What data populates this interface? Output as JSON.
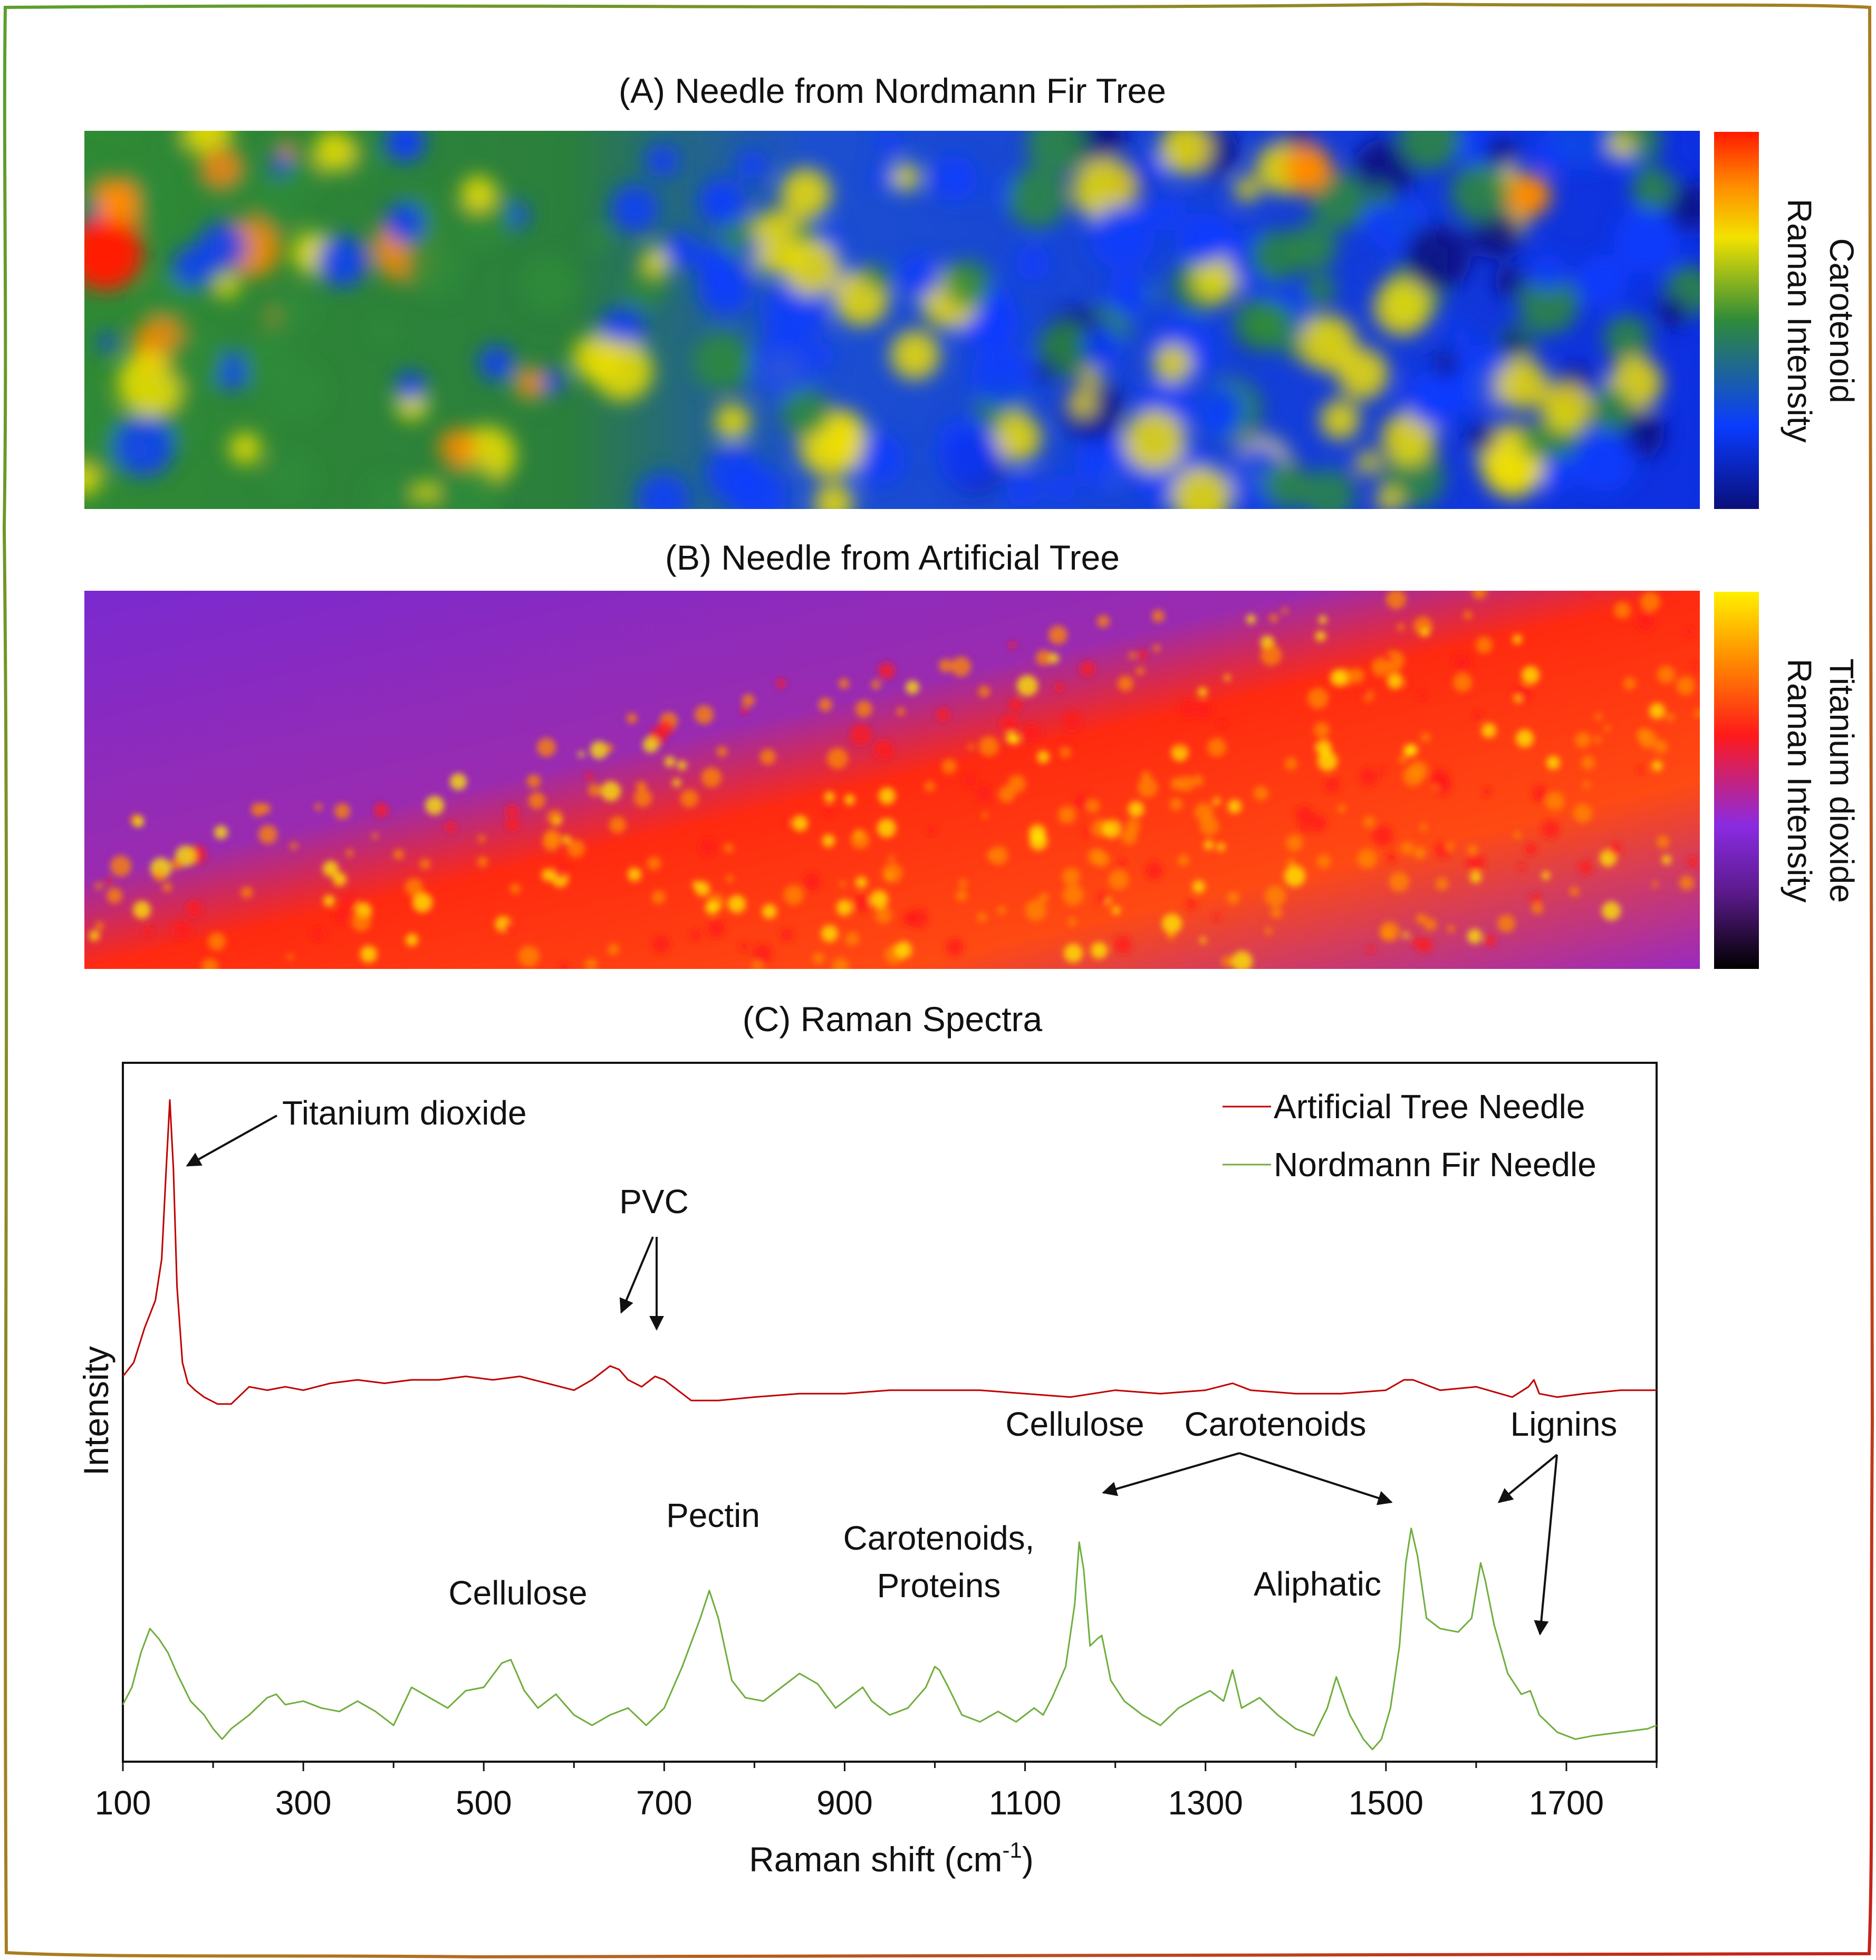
{
  "panels": {
    "a": {
      "title": "(A) Needle from Nordmann Fir Tree",
      "colorbar_label_1": "Carotenoid",
      "colorbar_label_2": "Raman Intensity",
      "colormap": [
        "#0a0f7a",
        "#0a3cff",
        "#2e8b3a",
        "#f2e200",
        "#ff8a00",
        "#ff1a00"
      ]
    },
    "b": {
      "title": "(B) Needle from Artificial Tree",
      "colorbar_label_1": "Titanium dioxide",
      "colorbar_label_2": "Raman Intensity",
      "colormap": [
        "#000000",
        "#5a1a8a",
        "#8a2be2",
        "#ff1a1a",
        "#ff8c00",
        "#fff000"
      ]
    },
    "c": {
      "title": "(C) Raman Spectra"
    }
  },
  "chart_data": {
    "type": "line",
    "title": "(C) Raman Spectra",
    "xlabel": "Raman shift (cm",
    "xlabel_sup": "-1",
    "xlabel_end": ")",
    "ylabel": "Intensity",
    "xlim": [
      100,
      1800
    ],
    "ylim": [
      0,
      1
    ],
    "xticks": [
      100,
      300,
      500,
      700,
      900,
      1100,
      1300,
      1500,
      1700
    ],
    "grid": false,
    "legend_position": "top-right",
    "series": [
      {
        "name": "Artificial Tree Needle",
        "color": "#c00000",
        "x": [
          100,
          112,
          124,
          136,
          143,
          148,
          152,
          156,
          160,
          166,
          172,
          180,
          190,
          205,
          220,
          240,
          260,
          280,
          300,
          330,
          360,
          390,
          420,
          450,
          480,
          510,
          540,
          570,
          600,
          620,
          640,
          650,
          660,
          675,
          690,
          700,
          715,
          730,
          760,
          800,
          850,
          900,
          950,
          1000,
          1050,
          1100,
          1150,
          1200,
          1250,
          1300,
          1330,
          1350,
          1400,
          1450,
          1500,
          1520,
          1530,
          1540,
          1560,
          1600,
          1640,
          1658,
          1664,
          1670,
          1690,
          1720,
          1760,
          1800
        ],
        "y": [
          0.55,
          0.57,
          0.62,
          0.66,
          0.72,
          0.85,
          0.95,
          0.85,
          0.68,
          0.57,
          0.54,
          0.53,
          0.52,
          0.51,
          0.51,
          0.535,
          0.53,
          0.535,
          0.53,
          0.54,
          0.545,
          0.54,
          0.545,
          0.545,
          0.55,
          0.545,
          0.55,
          0.54,
          0.53,
          0.545,
          0.565,
          0.56,
          0.545,
          0.535,
          0.55,
          0.545,
          0.53,
          0.515,
          0.515,
          0.52,
          0.525,
          0.525,
          0.53,
          0.53,
          0.53,
          0.525,
          0.52,
          0.53,
          0.525,
          0.53,
          0.54,
          0.53,
          0.525,
          0.525,
          0.53,
          0.545,
          0.545,
          0.54,
          0.53,
          0.535,
          0.52,
          0.535,
          0.545,
          0.525,
          0.52,
          0.525,
          0.53,
          0.53
        ]
      },
      {
        "name": "Nordmann Fir Needle",
        "color": "#6fae3c",
        "x": [
          100,
          110,
          120,
          130,
          140,
          150,
          160,
          175,
          190,
          200,
          210,
          220,
          240,
          260,
          270,
          280,
          300,
          320,
          340,
          360,
          380,
          400,
          420,
          440,
          460,
          480,
          500,
          520,
          530,
          545,
          560,
          580,
          600,
          620,
          640,
          660,
          680,
          700,
          720,
          740,
          750,
          760,
          775,
          790,
          810,
          830,
          850,
          870,
          890,
          910,
          920,
          930,
          950,
          970,
          990,
          1000,
          1005,
          1015,
          1030,
          1050,
          1070,
          1090,
          1110,
          1120,
          1130,
          1145,
          1155,
          1160,
          1165,
          1172,
          1180,
          1185,
          1195,
          1210,
          1230,
          1250,
          1270,
          1290,
          1305,
          1320,
          1330,
          1340,
          1360,
          1380,
          1400,
          1420,
          1435,
          1445,
          1460,
          1475,
          1485,
          1495,
          1505,
          1515,
          1522,
          1528,
          1535,
          1545,
          1560,
          1580,
          1595,
          1605,
          1610,
          1620,
          1635,
          1650,
          1660,
          1670,
          1690,
          1710,
          1730,
          1760,
          1790,
          1800
        ],
        "y": [
          0.075,
          0.1,
          0.15,
          0.185,
          0.17,
          0.15,
          0.12,
          0.08,
          0.06,
          0.04,
          0.025,
          0.04,
          0.06,
          0.085,
          0.09,
          0.075,
          0.08,
          0.07,
          0.065,
          0.08,
          0.065,
          0.045,
          0.1,
          0.085,
          0.07,
          0.095,
          0.1,
          0.135,
          0.14,
          0.095,
          0.07,
          0.09,
          0.06,
          0.045,
          0.06,
          0.07,
          0.045,
          0.07,
          0.13,
          0.2,
          0.24,
          0.2,
          0.11,
          0.085,
          0.08,
          0.1,
          0.12,
          0.105,
          0.07,
          0.09,
          0.1,
          0.08,
          0.06,
          0.07,
          0.1,
          0.13,
          0.125,
          0.1,
          0.06,
          0.05,
          0.065,
          0.05,
          0.07,
          0.06,
          0.085,
          0.13,
          0.22,
          0.31,
          0.27,
          0.16,
          0.17,
          0.175,
          0.11,
          0.08,
          0.06,
          0.045,
          0.07,
          0.085,
          0.095,
          0.08,
          0.125,
          0.07,
          0.085,
          0.06,
          0.04,
          0.03,
          0.07,
          0.115,
          0.06,
          0.025,
          0.01,
          0.025,
          0.07,
          0.16,
          0.28,
          0.33,
          0.29,
          0.2,
          0.185,
          0.18,
          0.2,
          0.28,
          0.255,
          0.19,
          0.12,
          0.09,
          0.095,
          0.06,
          0.035,
          0.025,
          0.03,
          0.035,
          0.04,
          0.045
        ]
      }
    ],
    "annotations": [
      {
        "text": "Titanium dioxide",
        "x": 152
      },
      {
        "text": "PVC",
        "x": 660
      },
      {
        "text": "Cellulose",
        "x": 520
      },
      {
        "text": "Pectin",
        "x": 750
      },
      {
        "text": "Carotenoids,",
        "x": 1000
      },
      {
        "text": "Proteins",
        "x": 1000
      },
      {
        "text": "Cellulose",
        "x": 1160
      },
      {
        "text": "Carotenoids",
        "x": 1530
      },
      {
        "text": "Aliphatic",
        "x": 1440
      },
      {
        "text": "Lignins",
        "x": 1610
      }
    ]
  }
}
